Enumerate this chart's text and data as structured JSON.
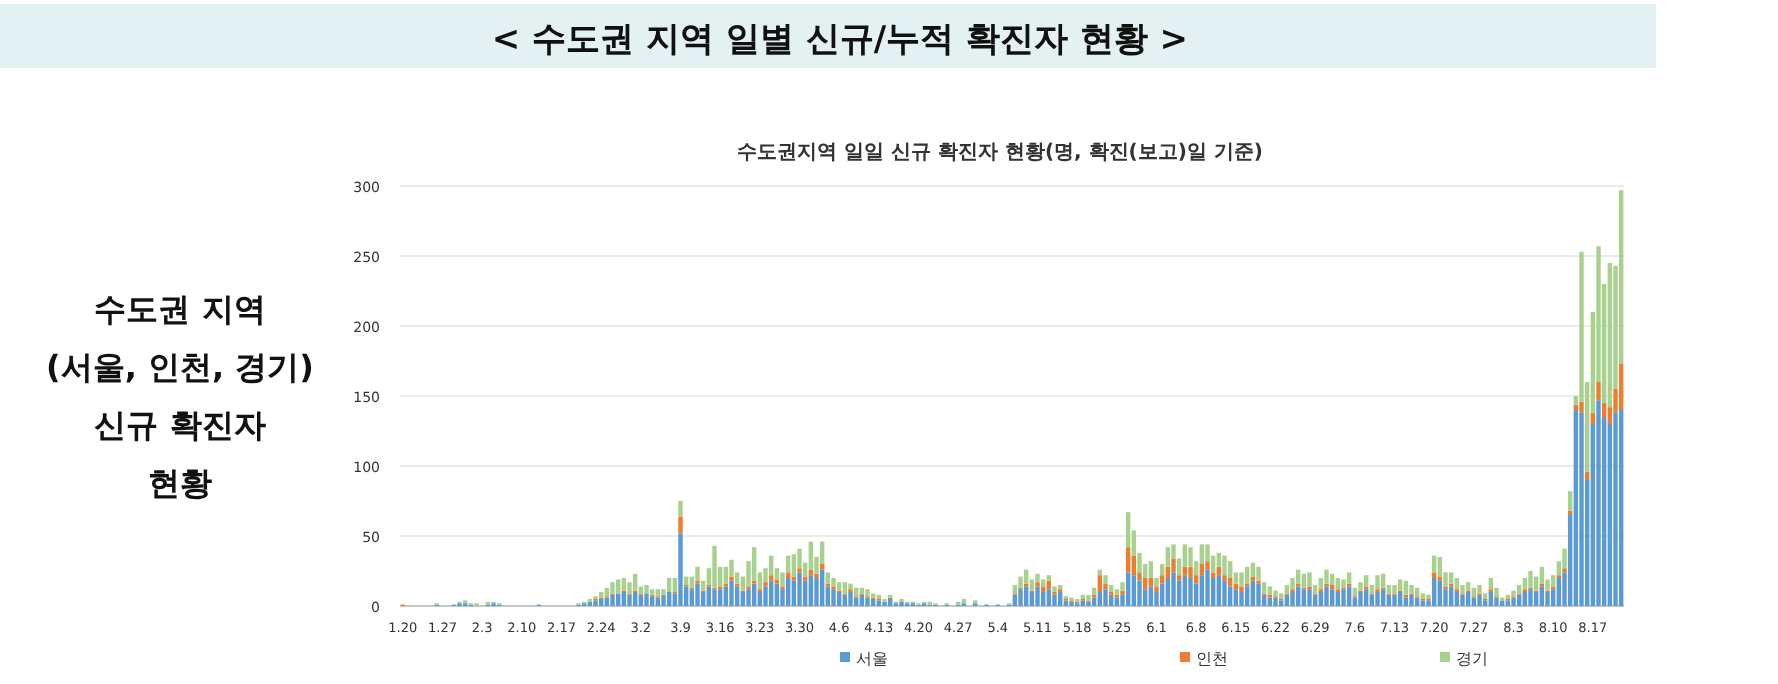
{
  "chart_data": {
    "type": "bar",
    "title": "< 수도권 지역 일별 신규/누적 확진자 현황 >",
    "subtitle": "수도권지역 일일 신규 확진자 현황(명, 확진(보고)일 기준)",
    "annotations": [
      "수도권 지역\n(서울, 인천, 경기)\n신규 확진자\n현황"
    ],
    "stacked": true,
    "ylim": [
      0,
      300
    ],
    "yticks": [
      0,
      50,
      100,
      150,
      200,
      250,
      300
    ],
    "grid": "y",
    "legend": "bottom",
    "categories": [
      "1.20",
      null,
      null,
      null,
      null,
      null,
      null,
      "1.27",
      null,
      null,
      null,
      null,
      null,
      null,
      "2.3",
      null,
      null,
      null,
      null,
      null,
      null,
      "2.10",
      null,
      null,
      null,
      null,
      null,
      null,
      "2.17",
      null,
      null,
      null,
      null,
      null,
      null,
      "2.24",
      null,
      null,
      null,
      null,
      null,
      null,
      "3.2",
      null,
      null,
      null,
      null,
      null,
      null,
      "3.9",
      null,
      null,
      null,
      null,
      null,
      null,
      "3.16",
      null,
      null,
      null,
      null,
      null,
      null,
      "3.23",
      null,
      null,
      null,
      null,
      null,
      null,
      "3.30",
      null,
      null,
      null,
      null,
      null,
      null,
      "4.6",
      null,
      null,
      null,
      null,
      null,
      null,
      "4.13",
      null,
      null,
      null,
      null,
      null,
      null,
      "4.20",
      null,
      null,
      null,
      null,
      null,
      null,
      "4.27",
      null,
      null,
      null,
      null,
      null,
      null,
      "5.4",
      null,
      null,
      null,
      null,
      null,
      null,
      "5.11",
      null,
      null,
      null,
      null,
      null,
      null,
      "5.18",
      null,
      null,
      null,
      null,
      null,
      null,
      "5.25",
      null,
      null,
      null,
      null,
      null,
      null,
      "6.1",
      null,
      null,
      null,
      null,
      null,
      null,
      "6.8",
      null,
      null,
      null,
      null,
      null,
      null,
      "6.15",
      null,
      null,
      null,
      null,
      null,
      null,
      "6.22",
      null,
      null,
      null,
      null,
      null,
      null,
      "6.29",
      null,
      null,
      null,
      null,
      null,
      null,
      "7.6",
      null,
      null,
      null,
      null,
      null,
      null,
      "7.13",
      null,
      null,
      null,
      null,
      null,
      null,
      "7.20",
      null,
      null,
      null,
      null,
      null,
      null,
      "7.27",
      null,
      null,
      null,
      null,
      null,
      null,
      "8.3",
      null,
      null,
      null,
      null,
      null,
      null,
      "8.10",
      null,
      null,
      null,
      null,
      null,
      null,
      "8.17",
      null,
      null,
      null,
      null,
      null
    ],
    "series": [
      {
        "name": "서울",
        "color": "#5b9bd5",
        "values": [
          0,
          0,
          0,
          0,
          0,
          0,
          1,
          0,
          0,
          1,
          2,
          2,
          1,
          0,
          0,
          1,
          2,
          1,
          0,
          0,
          0,
          0,
          0,
          0,
          1,
          0,
          0,
          0,
          0,
          0,
          0,
          1,
          2,
          3,
          4,
          5,
          6,
          8,
          9,
          10,
          8,
          10,
          8,
          9,
          7,
          6,
          8,
          10,
          9,
          52,
          14,
          12,
          16,
          10,
          14,
          12,
          12,
          14,
          18,
          14,
          10,
          12,
          16,
          10,
          14,
          18,
          16,
          12,
          20,
          18,
          24,
          18,
          22,
          20,
          26,
          14,
          12,
          10,
          8,
          10,
          6,
          8,
          6,
          5,
          4,
          3,
          5,
          2,
          3,
          2,
          2,
          1,
          2,
          1,
          1,
          0,
          1,
          0,
          1,
          2,
          0,
          2,
          0,
          1,
          0,
          1,
          0,
          1,
          8,
          12,
          14,
          10,
          14,
          10,
          12,
          8,
          10,
          4,
          3,
          2,
          4,
          3,
          6,
          10,
          12,
          8,
          6,
          8,
          24,
          22,
          18,
          12,
          14,
          10,
          16,
          20,
          24,
          18,
          22,
          20,
          16,
          22,
          26,
          20,
          22,
          18,
          14,
          12,
          10,
          14,
          18,
          16,
          8,
          6,
          6,
          4,
          8,
          10,
          14,
          12,
          12,
          8,
          10,
          14,
          12,
          10,
          12,
          14,
          6,
          10,
          12,
          8,
          10,
          12,
          8,
          8,
          10,
          6,
          8,
          6,
          4,
          4,
          20,
          18,
          12,
          14,
          10,
          8,
          10,
          6,
          8,
          4,
          10,
          6,
          4,
          4,
          6,
          8,
          10,
          12,
          10,
          14,
          10,
          12,
          20,
          24,
          65,
          140,
          138,
          90,
          130,
          147,
          135,
          130,
          138,
          140
        ]
      },
      {
        "name": "인천",
        "color": "#ed7d31",
        "values": [
          1,
          0,
          0,
          0,
          0,
          0,
          0,
          0,
          0,
          0,
          0,
          0,
          0,
          0,
          0,
          0,
          0,
          0,
          0,
          0,
          0,
          0,
          0,
          0,
          0,
          0,
          0,
          0,
          0,
          0,
          0,
          0,
          0,
          0,
          1,
          1,
          1,
          1,
          0,
          1,
          1,
          1,
          1,
          0,
          1,
          1,
          0,
          0,
          1,
          12,
          1,
          1,
          2,
          1,
          1,
          1,
          2,
          2,
          3,
          2,
          1,
          2,
          2,
          2,
          3,
          4,
          3,
          2,
          4,
          3,
          3,
          3,
          4,
          3,
          4,
          2,
          2,
          1,
          1,
          2,
          1,
          1,
          1,
          1,
          1,
          0,
          1,
          0,
          0,
          0,
          0,
          0,
          0,
          0,
          0,
          0,
          0,
          0,
          0,
          0,
          0,
          0,
          0,
          0,
          0,
          0,
          0,
          0,
          1,
          1,
          2,
          1,
          3,
          4,
          6,
          2,
          2,
          1,
          1,
          1,
          1,
          1,
          2,
          12,
          4,
          2,
          2,
          3,
          18,
          14,
          6,
          8,
          6,
          4,
          6,
          8,
          10,
          4,
          6,
          8,
          6,
          8,
          6,
          4,
          6,
          4,
          6,
          4,
          4,
          2,
          3,
          2,
          1,
          2,
          1,
          1,
          1,
          2,
          2,
          1,
          2,
          1,
          2,
          2,
          3,
          2,
          1,
          2,
          1,
          1,
          2,
          1,
          2,
          1,
          1,
          1,
          1,
          2,
          1,
          1,
          1,
          1,
          4,
          3,
          2,
          2,
          2,
          1,
          1,
          1,
          1,
          1,
          2,
          1,
          0,
          1,
          1,
          1,
          2,
          1,
          1,
          2,
          1,
          2,
          2,
          3,
          3,
          4,
          8,
          6,
          8,
          13,
          10,
          12,
          17,
          33
        ]
      },
      {
        "name": "경기",
        "color": "#a9d18e",
        "values": [
          0,
          0,
          0,
          0,
          0,
          0,
          1,
          null,
          0,
          0,
          1,
          2,
          1,
          2,
          null,
          2,
          1,
          1,
          0,
          0,
          0,
          null,
          0,
          0,
          0,
          0,
          0,
          0,
          0,
          0,
          0,
          1,
          1,
          2,
          2,
          4,
          6,
          8,
          10,
          9,
          8,
          12,
          5,
          6,
          4,
          5,
          4,
          10,
          10,
          11,
          6,
          8,
          10,
          7,
          12,
          30,
          14,
          12,
          12,
          8,
          10,
          18,
          24,
          12,
          10,
          14,
          8,
          10,
          12,
          16,
          14,
          10,
          20,
          12,
          16,
          8,
          6,
          6,
          8,
          4,
          6,
          4,
          5,
          3,
          3,
          2,
          2,
          1,
          2,
          1,
          1,
          1,
          1,
          2,
          1,
          0,
          1,
          0,
          2,
          3,
          null,
          2,
          0,
          0,
          0,
          0,
          0,
          1,
          6,
          8,
          10,
          8,
          6,
          5,
          4,
          4,
          3,
          2,
          2,
          2,
          3,
          4,
          5,
          4,
          6,
          5,
          4,
          6,
          25,
          18,
          14,
          10,
          12,
          6,
          8,
          14,
          10,
          12,
          16,
          14,
          10,
          14,
          12,
          12,
          10,
          14,
          12,
          8,
          10,
          12,
          10,
          10,
          8,
          6,
          4,
          4,
          6,
          8,
          10,
          10,
          10,
          6,
          8,
          10,
          8,
          8,
          6,
          8,
          6,
          6,
          8,
          6,
          10,
          10,
          6,
          6,
          8,
          10,
          6,
          6,
          4,
          3,
          12,
          14,
          10,
          8,
          8,
          6,
          6,
          6,
          6,
          4,
          8,
          6,
          2,
          3,
          4,
          6,
          8,
          12,
          10,
          12,
          8,
          8,
          10,
          14,
          14,
          6,
          107,
          64,
          72,
          97,
          85,
          103,
          88,
          124
        ]
      }
    ]
  }
}
